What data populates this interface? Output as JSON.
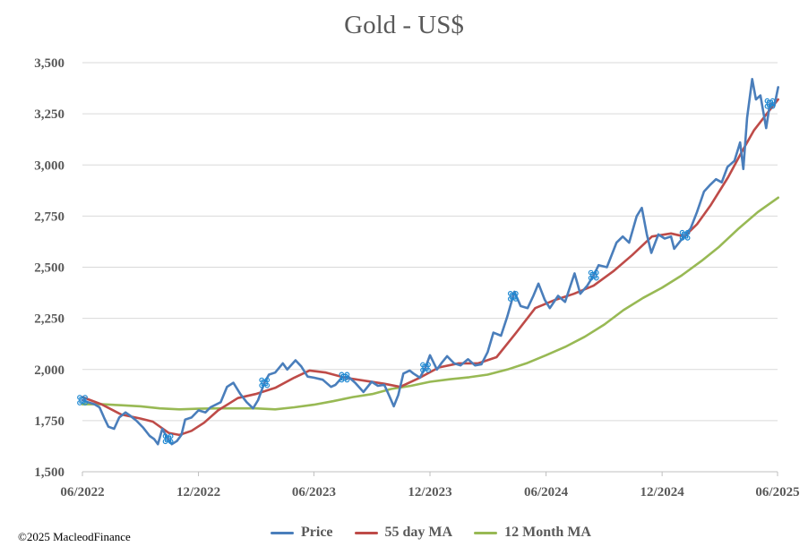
{
  "copyright": "©2025 MacleodFinance",
  "chart_data": {
    "type": "line",
    "title": "Gold - US$",
    "xlabel": "",
    "ylabel": "",
    "ylim": [
      1500,
      3500
    ],
    "yticks": [
      1500,
      1750,
      2000,
      2250,
      2500,
      2750,
      3000,
      3250,
      3500
    ],
    "ytick_labels": [
      "1,500",
      "1,750",
      "2,000",
      "2,250",
      "2,500",
      "2,750",
      "3,000",
      "3,250",
      "3,500"
    ],
    "xlim": [
      "2022-06-01",
      "2025-06-01"
    ],
    "xticks": [
      "2022-06-01",
      "2022-12-01",
      "2023-06-01",
      "2023-12-01",
      "2024-06-01",
      "2024-12-01",
      "2025-06-01"
    ],
    "xtick_labels": [
      "06/2022",
      "12/2022",
      "06/2023",
      "12/2023",
      "06/2024",
      "12/2024",
      "06/2025"
    ],
    "grid": "horizontal",
    "legend_position": "bottom",
    "colors": {
      "price": "#4a7ebb",
      "ma55": "#be4b48",
      "ma12m": "#98b954"
    },
    "markers": [
      "2022-06-01",
      "2022-10-14",
      "2023-03-15",
      "2023-07-19",
      "2023-11-24",
      "2024-04-10",
      "2024-08-15",
      "2025-01-06",
      "2025-05-20"
    ],
    "series": [
      {
        "name": "Price",
        "color": "#4a7ebb",
        "points": [
          [
            "2022-06-01",
            1850
          ],
          [
            "2022-06-10",
            1840
          ],
          [
            "2022-06-20",
            1830
          ],
          [
            "2022-06-28",
            1815
          ],
          [
            "2022-07-05",
            1765
          ],
          [
            "2022-07-12",
            1720
          ],
          [
            "2022-07-21",
            1710
          ],
          [
            "2022-07-29",
            1765
          ],
          [
            "2022-08-08",
            1790
          ],
          [
            "2022-08-15",
            1775
          ],
          [
            "2022-08-25",
            1750
          ],
          [
            "2022-09-05",
            1715
          ],
          [
            "2022-09-15",
            1675
          ],
          [
            "2022-09-22",
            1660
          ],
          [
            "2022-09-28",
            1635
          ],
          [
            "2022-10-05",
            1710
          ],
          [
            "2022-10-12",
            1670
          ],
          [
            "2022-10-20",
            1635
          ],
          [
            "2022-10-28",
            1650
          ],
          [
            "2022-11-04",
            1680
          ],
          [
            "2022-11-10",
            1755
          ],
          [
            "2022-11-20",
            1765
          ],
          [
            "2022-12-01",
            1800
          ],
          [
            "2022-12-12",
            1790
          ],
          [
            "2022-12-20",
            1815
          ],
          [
            "2023-01-05",
            1840
          ],
          [
            "2023-01-15",
            1915
          ],
          [
            "2023-01-25",
            1935
          ],
          [
            "2023-02-05",
            1880
          ],
          [
            "2023-02-15",
            1840
          ],
          [
            "2023-02-25",
            1810
          ],
          [
            "2023-03-05",
            1850
          ],
          [
            "2023-03-15",
            1935
          ],
          [
            "2023-03-22",
            1975
          ],
          [
            "2023-04-01",
            1985
          ],
          [
            "2023-04-13",
            2030
          ],
          [
            "2023-04-20",
            2000
          ],
          [
            "2023-05-03",
            2045
          ],
          [
            "2023-05-12",
            2015
          ],
          [
            "2023-05-22",
            1965
          ],
          [
            "2023-06-01",
            1960
          ],
          [
            "2023-06-15",
            1950
          ],
          [
            "2023-06-28",
            1915
          ],
          [
            "2023-07-05",
            1925
          ],
          [
            "2023-07-15",
            1960
          ],
          [
            "2023-07-25",
            1965
          ],
          [
            "2023-08-05",
            1935
          ],
          [
            "2023-08-18",
            1890
          ],
          [
            "2023-08-31",
            1940
          ],
          [
            "2023-09-10",
            1920
          ],
          [
            "2023-09-20",
            1925
          ],
          [
            "2023-09-28",
            1870
          ],
          [
            "2023-10-05",
            1820
          ],
          [
            "2023-10-12",
            1875
          ],
          [
            "2023-10-20",
            1980
          ],
          [
            "2023-10-30",
            1995
          ],
          [
            "2023-11-05",
            1980
          ],
          [
            "2023-11-15",
            1960
          ],
          [
            "2023-11-24",
            2010
          ],
          [
            "2023-12-01",
            2070
          ],
          [
            "2023-12-12",
            2000
          ],
          [
            "2023-12-20",
            2035
          ],
          [
            "2023-12-28",
            2065
          ],
          [
            "2024-01-08",
            2030
          ],
          [
            "2024-01-18",
            2020
          ],
          [
            "2024-01-30",
            2050
          ],
          [
            "2024-02-10",
            2020
          ],
          [
            "2024-02-20",
            2025
          ],
          [
            "2024-03-01",
            2085
          ],
          [
            "2024-03-10",
            2180
          ],
          [
            "2024-03-22",
            2165
          ],
          [
            "2024-04-01",
            2260
          ],
          [
            "2024-04-12",
            2380
          ],
          [
            "2024-04-22",
            2310
          ],
          [
            "2024-05-03",
            2300
          ],
          [
            "2024-05-12",
            2360
          ],
          [
            "2024-05-20",
            2420
          ],
          [
            "2024-05-30",
            2340
          ],
          [
            "2024-06-07",
            2300
          ],
          [
            "2024-06-20",
            2360
          ],
          [
            "2024-07-01",
            2330
          ],
          [
            "2024-07-16",
            2470
          ],
          [
            "2024-07-25",
            2370
          ],
          [
            "2024-08-05",
            2410
          ],
          [
            "2024-08-15",
            2460
          ],
          [
            "2024-08-23",
            2510
          ],
          [
            "2024-09-05",
            2500
          ],
          [
            "2024-09-20",
            2620
          ],
          [
            "2024-09-30",
            2650
          ],
          [
            "2024-10-10",
            2620
          ],
          [
            "2024-10-22",
            2750
          ],
          [
            "2024-10-30",
            2790
          ],
          [
            "2024-11-07",
            2660
          ],
          [
            "2024-11-14",
            2570
          ],
          [
            "2024-11-25",
            2660
          ],
          [
            "2024-12-05",
            2640
          ],
          [
            "2024-12-15",
            2650
          ],
          [
            "2024-12-20",
            2590
          ],
          [
            "2025-01-03",
            2645
          ],
          [
            "2025-01-15",
            2690
          ],
          [
            "2025-01-25",
            2770
          ],
          [
            "2025-02-05",
            2870
          ],
          [
            "2025-02-14",
            2900
          ],
          [
            "2025-02-24",
            2930
          ],
          [
            "2025-03-05",
            2915
          ],
          [
            "2025-03-14",
            2990
          ],
          [
            "2025-03-25",
            3020
          ],
          [
            "2025-04-03",
            3110
          ],
          [
            "2025-04-08",
            2980
          ],
          [
            "2025-04-14",
            3230
          ],
          [
            "2025-04-22",
            3420
          ],
          [
            "2025-04-28",
            3320
          ],
          [
            "2025-05-05",
            3340
          ],
          [
            "2025-05-14",
            3180
          ],
          [
            "2025-05-20",
            3300
          ],
          [
            "2025-05-27",
            3290
          ],
          [
            "2025-06-02",
            3380
          ]
        ]
      },
      {
        "name": "55 day MA",
        "color": "#be4b48",
        "points": [
          [
            "2022-06-01",
            1865
          ],
          [
            "2022-07-01",
            1830
          ],
          [
            "2022-08-01",
            1780
          ],
          [
            "2022-09-01",
            1760
          ],
          [
            "2022-09-20",
            1745
          ],
          [
            "2022-10-15",
            1690
          ],
          [
            "2022-11-01",
            1680
          ],
          [
            "2022-11-20",
            1700
          ],
          [
            "2022-12-10",
            1740
          ],
          [
            "2023-01-01",
            1800
          ],
          [
            "2023-02-01",
            1860
          ],
          [
            "2023-03-01",
            1880
          ],
          [
            "2023-04-01",
            1910
          ],
          [
            "2023-05-01",
            1960
          ],
          [
            "2023-05-25",
            1995
          ],
          [
            "2023-06-20",
            1985
          ],
          [
            "2023-07-20",
            1960
          ],
          [
            "2023-08-20",
            1945
          ],
          [
            "2023-09-20",
            1930
          ],
          [
            "2023-10-15",
            1915
          ],
          [
            "2023-11-15",
            1960
          ],
          [
            "2023-12-15",
            2010
          ],
          [
            "2024-01-15",
            2030
          ],
          [
            "2024-02-15",
            2030
          ],
          [
            "2024-03-15",
            2060
          ],
          [
            "2024-04-15",
            2180
          ],
          [
            "2024-05-15",
            2300
          ],
          [
            "2024-06-15",
            2340
          ],
          [
            "2024-07-15",
            2370
          ],
          [
            "2024-08-15",
            2410
          ],
          [
            "2024-09-15",
            2480
          ],
          [
            "2024-10-15",
            2560
          ],
          [
            "2024-11-15",
            2650
          ],
          [
            "2024-12-15",
            2665
          ],
          [
            "2025-01-05",
            2650
          ],
          [
            "2025-01-25",
            2710
          ],
          [
            "2025-02-15",
            2800
          ],
          [
            "2025-03-15",
            2940
          ],
          [
            "2025-04-05",
            3060
          ],
          [
            "2025-04-25",
            3170
          ],
          [
            "2025-05-15",
            3250
          ],
          [
            "2025-06-02",
            3320
          ]
        ]
      },
      {
        "name": "12 Month MA",
        "color": "#98b954",
        "points": [
          [
            "2022-06-01",
            1830
          ],
          [
            "2022-07-01",
            1830
          ],
          [
            "2022-08-01",
            1825
          ],
          [
            "2022-09-01",
            1820
          ],
          [
            "2022-10-01",
            1810
          ],
          [
            "2022-11-01",
            1805
          ],
          [
            "2022-12-01",
            1808
          ],
          [
            "2023-01-01",
            1810
          ],
          [
            "2023-02-01",
            1810
          ],
          [
            "2023-03-01",
            1810
          ],
          [
            "2023-04-01",
            1805
          ],
          [
            "2023-05-01",
            1815
          ],
          [
            "2023-06-01",
            1828
          ],
          [
            "2023-07-01",
            1845
          ],
          [
            "2023-08-01",
            1865
          ],
          [
            "2023-09-01",
            1880
          ],
          [
            "2023-10-01",
            1905
          ],
          [
            "2023-11-01",
            1920
          ],
          [
            "2023-12-01",
            1940
          ],
          [
            "2024-01-01",
            1952
          ],
          [
            "2024-02-01",
            1962
          ],
          [
            "2024-03-01",
            1975
          ],
          [
            "2024-04-01",
            2000
          ],
          [
            "2024-05-01",
            2030
          ],
          [
            "2024-06-01",
            2070
          ],
          [
            "2024-07-01",
            2110
          ],
          [
            "2024-08-01",
            2160
          ],
          [
            "2024-09-01",
            2220
          ],
          [
            "2024-10-01",
            2290
          ],
          [
            "2024-11-01",
            2350
          ],
          [
            "2024-12-01",
            2400
          ],
          [
            "2025-01-01",
            2460
          ],
          [
            "2025-02-01",
            2530
          ],
          [
            "2025-03-01",
            2600
          ],
          [
            "2025-04-01",
            2690
          ],
          [
            "2025-05-01",
            2770
          ],
          [
            "2025-06-02",
            2840
          ]
        ]
      }
    ]
  }
}
